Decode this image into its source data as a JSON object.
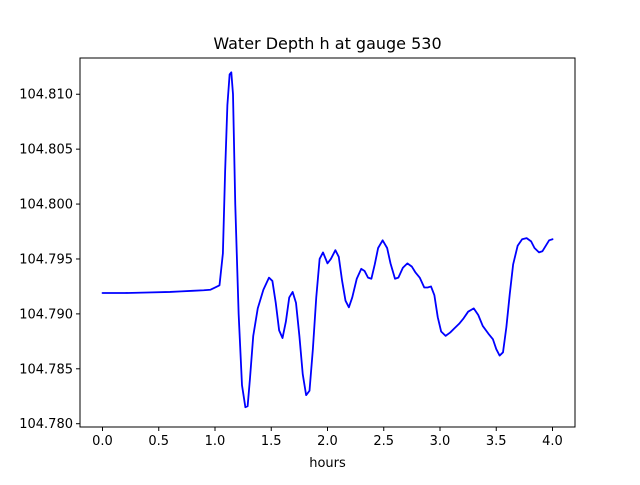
{
  "chart_data": {
    "type": "line",
    "title": "Water Depth h at gauge 530",
    "xlabel": "hours",
    "ylabel": "",
    "xlim": [
      -0.2,
      4.2
    ],
    "ylim": [
      104.7797,
      104.8133
    ],
    "x_ticks": [
      0.0,
      0.5,
      1.0,
      1.5,
      2.0,
      2.5,
      3.0,
      3.5,
      4.0
    ],
    "x_tick_labels": [
      "0.0",
      "0.5",
      "1.0",
      "1.5",
      "2.0",
      "2.5",
      "3.0",
      "3.5",
      "4.0"
    ],
    "y_ticks": [
      104.78,
      104.785,
      104.79,
      104.795,
      104.8,
      104.805,
      104.81
    ],
    "y_tick_labels": [
      "104.780",
      "104.785",
      "104.790",
      "104.795",
      "104.800",
      "104.805",
      "104.810"
    ],
    "grid": false,
    "legend": "none",
    "series": [
      {
        "color": "#0000ff",
        "points": [
          [
            0.0,
            104.7919
          ],
          [
            0.2,
            104.7919
          ],
          [
            0.4,
            104.79195
          ],
          [
            0.6,
            104.792
          ],
          [
            0.7,
            104.79205
          ],
          [
            0.8,
            104.7921
          ],
          [
            0.9,
            104.79215
          ],
          [
            0.96,
            104.7922
          ],
          [
            1.0,
            104.7924
          ],
          [
            1.04,
            104.7926
          ],
          [
            1.07,
            104.7955
          ],
          [
            1.09,
            104.803
          ],
          [
            1.11,
            104.809
          ],
          [
            1.13,
            104.8118
          ],
          [
            1.145,
            104.812
          ],
          [
            1.16,
            104.81
          ],
          [
            1.18,
            104.8
          ],
          [
            1.21,
            104.79
          ],
          [
            1.24,
            104.7835
          ],
          [
            1.27,
            104.7815
          ],
          [
            1.29,
            104.7816
          ],
          [
            1.31,
            104.784
          ],
          [
            1.34,
            104.788
          ],
          [
            1.38,
            104.7905
          ],
          [
            1.43,
            104.7922
          ],
          [
            1.48,
            104.7933
          ],
          [
            1.51,
            104.793
          ],
          [
            1.54,
            104.791
          ],
          [
            1.57,
            104.7885
          ],
          [
            1.6,
            104.7878
          ],
          [
            1.63,
            104.7893
          ],
          [
            1.66,
            104.7915
          ],
          [
            1.69,
            104.792
          ],
          [
            1.72,
            104.791
          ],
          [
            1.75,
            104.788
          ],
          [
            1.78,
            104.7845
          ],
          [
            1.81,
            104.7826
          ],
          [
            1.84,
            104.783
          ],
          [
            1.87,
            104.7868
          ],
          [
            1.9,
            104.7915
          ],
          [
            1.93,
            104.795
          ],
          [
            1.96,
            104.7956
          ],
          [
            2.0,
            104.7946
          ],
          [
            2.03,
            104.795
          ],
          [
            2.07,
            104.7958
          ],
          [
            2.1,
            104.7952
          ],
          [
            2.13,
            104.793
          ],
          [
            2.16,
            104.7912
          ],
          [
            2.19,
            104.7906
          ],
          [
            2.22,
            104.7915
          ],
          [
            2.26,
            104.7932
          ],
          [
            2.3,
            104.7941
          ],
          [
            2.33,
            104.7939
          ],
          [
            2.36,
            104.7933
          ],
          [
            2.39,
            104.7932
          ],
          [
            2.42,
            104.7945
          ],
          [
            2.45,
            104.796
          ],
          [
            2.49,
            104.7967
          ],
          [
            2.53,
            104.796
          ],
          [
            2.56,
            104.7946
          ],
          [
            2.6,
            104.7932
          ],
          [
            2.63,
            104.7933
          ],
          [
            2.67,
            104.7942
          ],
          [
            2.71,
            104.7946
          ],
          [
            2.75,
            104.7943
          ],
          [
            2.78,
            104.7938
          ],
          [
            2.82,
            104.7933
          ],
          [
            2.86,
            104.7924
          ],
          [
            2.89,
            104.7924
          ],
          [
            2.92,
            104.7925
          ],
          [
            2.95,
            104.7917
          ],
          [
            2.98,
            104.7897
          ],
          [
            3.01,
            104.7884
          ],
          [
            3.05,
            104.788
          ],
          [
            3.09,
            104.7883
          ],
          [
            3.13,
            104.7887
          ],
          [
            3.17,
            104.7891
          ],
          [
            3.21,
            104.7896
          ],
          [
            3.25,
            104.7902
          ],
          [
            3.3,
            104.7905
          ],
          [
            3.34,
            104.7899
          ],
          [
            3.38,
            104.7889
          ],
          [
            3.43,
            104.7882
          ],
          [
            3.47,
            104.7877
          ],
          [
            3.5,
            104.7868
          ],
          [
            3.53,
            104.7862
          ],
          [
            3.56,
            104.7865
          ],
          [
            3.59,
            104.7888
          ],
          [
            3.62,
            104.7918
          ],
          [
            3.65,
            104.7945
          ],
          [
            3.69,
            104.7962
          ],
          [
            3.73,
            104.7968
          ],
          [
            3.77,
            104.7969
          ],
          [
            3.81,
            104.7966
          ],
          [
            3.84,
            104.796
          ],
          [
            3.88,
            104.7956
          ],
          [
            3.91,
            104.7957
          ],
          [
            3.94,
            104.7962
          ],
          [
            3.97,
            104.7967
          ],
          [
            4.0,
            104.7968
          ]
        ]
      }
    ]
  }
}
